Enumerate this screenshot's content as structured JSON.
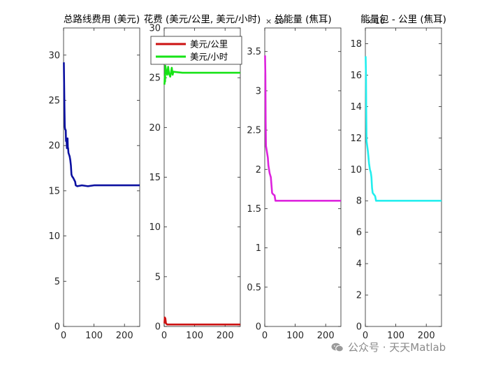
{
  "chart_data": [
    {
      "type": "line",
      "title": "总路线费用 (美元)",
      "xlim": [
        0,
        250
      ],
      "ylim": [
        0,
        33
      ],
      "xticks": [
        0,
        100,
        200
      ],
      "yticks": [
        0,
        5,
        10,
        15,
        20,
        25,
        30
      ],
      "exponent": "",
      "legend": null,
      "series": [
        {
          "color": "#0b10a0",
          "points": [
            [
              1,
              29.2
            ],
            [
              2,
              26.3
            ],
            [
              3,
              24
            ],
            [
              4,
              22.1
            ],
            [
              5,
              21.8
            ],
            [
              7,
              21.7
            ],
            [
              8,
              20.5
            ],
            [
              10,
              20.4
            ],
            [
              11,
              19.7
            ],
            [
              13,
              20.8
            ],
            [
              14,
              19.8
            ],
            [
              15,
              19.7
            ],
            [
              16,
              19.2
            ],
            [
              20,
              18.8
            ],
            [
              22,
              18.4
            ],
            [
              24,
              17.8
            ],
            [
              26,
              16.8
            ],
            [
              28,
              16.6
            ],
            [
              32,
              16.4
            ],
            [
              35,
              16.2
            ],
            [
              38,
              16
            ],
            [
              40,
              15.6
            ],
            [
              45,
              15.5
            ],
            [
              60,
              15.6
            ],
            [
              80,
              15.5
            ],
            [
              100,
              15.6
            ],
            [
              150,
              15.6
            ],
            [
              200,
              15.6
            ],
            [
              250,
              15.6
            ]
          ]
        }
      ]
    },
    {
      "type": "line",
      "title": "花费 (美元/公里, 美元/小时)",
      "xlim": [
        0,
        250
      ],
      "ylim": [
        0,
        30
      ],
      "xticks": [
        0,
        100,
        200
      ],
      "yticks": [
        0,
        5,
        10,
        15,
        20,
        25,
        30
      ],
      "exponent": "",
      "legend": "top-left",
      "series": [
        {
          "name": "美元/公里",
          "color": "#cc1111",
          "points": [
            [
              1,
              0.3
            ],
            [
              2,
              0.9
            ],
            [
              4,
              0.8
            ],
            [
              6,
              0.3
            ],
            [
              10,
              0.2
            ],
            [
              30,
              0.2
            ],
            [
              100,
              0.2
            ],
            [
              250,
              0.2
            ]
          ]
        },
        {
          "name": "美元/小时",
          "color": "#16e316",
          "points": [
            [
              1,
              24.3
            ],
            [
              2,
              25.2
            ],
            [
              3,
              24.6
            ],
            [
              4,
              26.2
            ],
            [
              6,
              25.8
            ],
            [
              10,
              25.3
            ],
            [
              13,
              26.1
            ],
            [
              16,
              25.4
            ],
            [
              20,
              25.1
            ],
            [
              25,
              26
            ],
            [
              28,
              25.3
            ],
            [
              30,
              25.6
            ],
            [
              60,
              25.5
            ],
            [
              100,
              25.5
            ],
            [
              150,
              25.5
            ],
            [
              200,
              25.5
            ],
            [
              250,
              25.5
            ]
          ]
        }
      ]
    },
    {
      "type": "line",
      "title": "总能量 (焦耳)",
      "xlim": [
        0,
        250
      ],
      "ylim": [
        0,
        3.8
      ],
      "xticks": [
        0,
        100,
        200
      ],
      "yticks": [
        0,
        0.5,
        1,
        1.5,
        2,
        2.5,
        3,
        3.5
      ],
      "exponent": "10",
      "legend": null,
      "series": [
        {
          "color": "#dd22dd",
          "points": [
            [
              1,
              3.45
            ],
            [
              2,
              3.2
            ],
            [
              3,
              2.6
            ],
            [
              4,
              2.3
            ],
            [
              6,
              2.25
            ],
            [
              8,
              2.2
            ],
            [
              10,
              2.15
            ],
            [
              12,
              2.05
            ],
            [
              16,
              1.95
            ],
            [
              20,
              1.9
            ],
            [
              22,
              1.8
            ],
            [
              24,
              1.7
            ],
            [
              28,
              1.68
            ],
            [
              32,
              1.67
            ],
            [
              35,
              1.6
            ],
            [
              40,
              1.6
            ],
            [
              80,
              1.6
            ],
            [
              120,
              1.6
            ],
            [
              200,
              1.6
            ],
            [
              250,
              1.6
            ]
          ]
        }
      ]
    },
    {
      "type": "line",
      "title": "能量包 - 公里 (焦耳)",
      "xlim": [
        0,
        250
      ],
      "ylim": [
        0,
        19
      ],
      "xticks": [
        0,
        100,
        200
      ],
      "yticks": [
        0,
        2,
        4,
        6,
        8,
        10,
        12,
        14,
        16,
        18
      ],
      "exponent": "10",
      "legend": null,
      "series": [
        {
          "color": "#22eeee",
          "points": [
            [
              1,
              17.2
            ],
            [
              2,
              16
            ],
            [
              3,
              13.5
            ],
            [
              4,
              11.8
            ],
            [
              6,
              11.5
            ],
            [
              8,
              11.2
            ],
            [
              10,
              10.8
            ],
            [
              12,
              10.4
            ],
            [
              15,
              10
            ],
            [
              18,
              9.8
            ],
            [
              20,
              9.5
            ],
            [
              22,
              8.8
            ],
            [
              24,
              8.5
            ],
            [
              28,
              8.4
            ],
            [
              32,
              8.3
            ],
            [
              35,
              8
            ],
            [
              40,
              8
            ],
            [
              80,
              8
            ],
            [
              120,
              8
            ],
            [
              200,
              8
            ],
            [
              250,
              8
            ]
          ]
        }
      ]
    }
  ],
  "watermark": {
    "text": "公众号 · 天天Matlab",
    "icon": "wechat-icon"
  }
}
